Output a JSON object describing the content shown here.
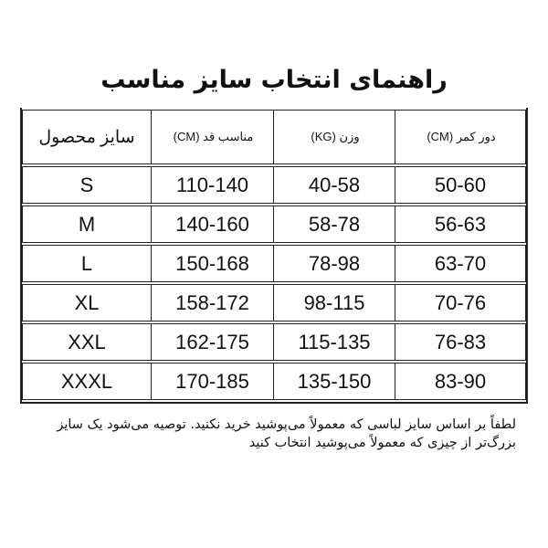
{
  "title": "راهنمای انتخاب سایز مناسب",
  "table": {
    "headers": [
      "سایز محصول",
      "مناسب قد (CM)",
      "وزن (KG)",
      "دور کمر (CM)"
    ],
    "rows": [
      [
        "S",
        "110-140",
        "40-58",
        "50-60"
      ],
      [
        "M",
        "140-160",
        "58-78",
        "56-63"
      ],
      [
        "L",
        "150-168",
        "78-98",
        "63-70"
      ],
      [
        "XL",
        "158-172",
        "98-115",
        "70-76"
      ],
      [
        "XXL",
        "162-175",
        "115-135",
        "76-83"
      ],
      [
        "XXXL",
        "170-185",
        "135-150",
        "83-90"
      ]
    ]
  },
  "note": "لطفاً بر اساس سایز لباسی که معمولاً می‌پوشید خرید نکنید. توصیه می‌شود یک سایز بزرگ‌تر از چیزی که معمولاً می‌پوشید انتخاب کنید"
}
